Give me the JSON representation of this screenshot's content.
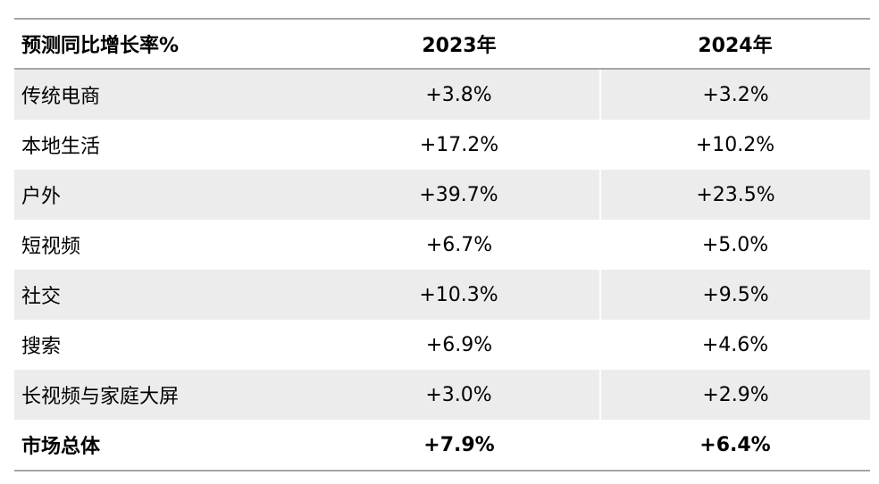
{
  "table": {
    "headers": [
      "预测同比增长率%",
      "2023年",
      "2024年"
    ],
    "rows": [
      {
        "category": "传统电商",
        "y2023": "+3.8%",
        "y2024": "+3.2%"
      },
      {
        "category": "本地生活",
        "y2023": "+17.2%",
        "y2024": "+10.2%"
      },
      {
        "category": "户外",
        "y2023": "+39.7%",
        "y2024": "+23.5%"
      },
      {
        "category": "短视频",
        "y2023": "+6.7%",
        "y2024": "+5.0%"
      },
      {
        "category": "社交",
        "y2023": "+10.3%",
        "y2024": "+9.5%"
      },
      {
        "category": "搜索",
        "y2023": "+6.9%",
        "y2024": "+4.6%"
      },
      {
        "category": "长视频与家庭大屏",
        "y2023": "+3.0%",
        "y2024": "+2.9%"
      }
    ],
    "total": {
      "category": "市场总体",
      "y2023": "+7.9%",
      "y2024": "+6.4%"
    }
  },
  "colors": {
    "rule": "#a6a6a6",
    "shaded_row": "#ececec",
    "text": "#000000"
  }
}
